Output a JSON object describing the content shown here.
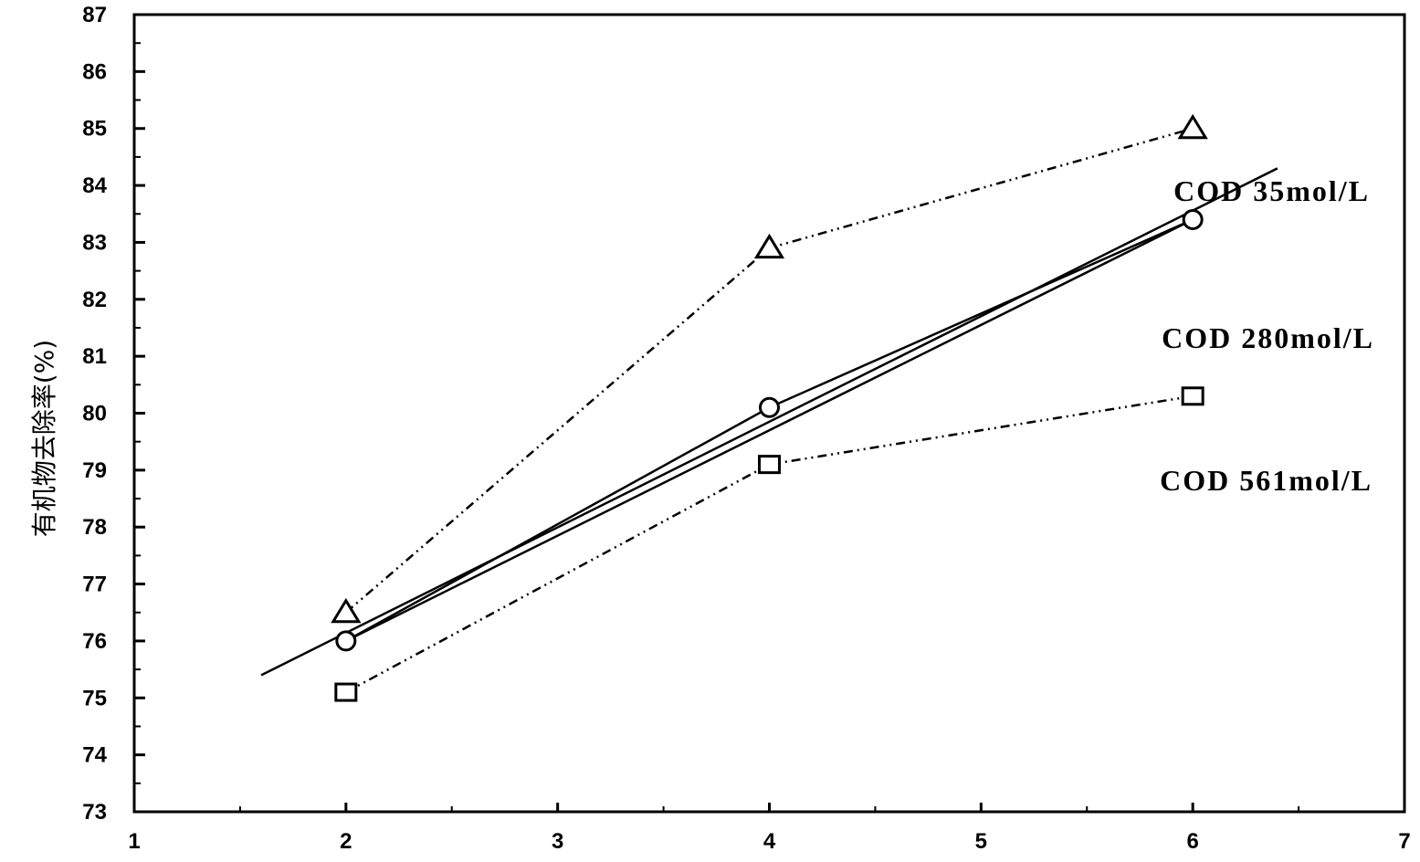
{
  "chart_data": {
    "type": "line",
    "title": "",
    "xlabel": "",
    "ylabel": "有机物去除率(%)",
    "xlim": [
      1,
      7
    ],
    "ylim": [
      73,
      87
    ],
    "x_ticks": [
      1,
      2,
      3,
      4,
      5,
      6,
      7
    ],
    "y_ticks": [
      73,
      74,
      75,
      76,
      77,
      78,
      79,
      80,
      81,
      82,
      83,
      84,
      85,
      86,
      87
    ],
    "grid": false,
    "x": [
      2,
      4,
      6
    ],
    "series": [
      {
        "name": "COD 35mol/L",
        "marker": "triangle",
        "line": "dash-dot",
        "values": [
          76.5,
          82.9,
          85.0
        ]
      },
      {
        "name": "COD 280mol/L",
        "marker": "circle",
        "line": "solid",
        "values": [
          76.0,
          80.1,
          83.4
        ]
      },
      {
        "name": "COD 561mol/L",
        "marker": "square",
        "line": "dash-dot",
        "values": [
          75.1,
          79.1,
          80.3
        ]
      }
    ],
    "fit_lines": [
      {
        "series": "COD 280mol/L",
        "x": [
          1.6,
          6.4
        ],
        "values": [
          75.4,
          84.3
        ]
      },
      {
        "series": "COD 280mol/L",
        "x": [
          2.0,
          6.0
        ],
        "values": [
          76.0,
          83.4
        ]
      }
    ]
  }
}
